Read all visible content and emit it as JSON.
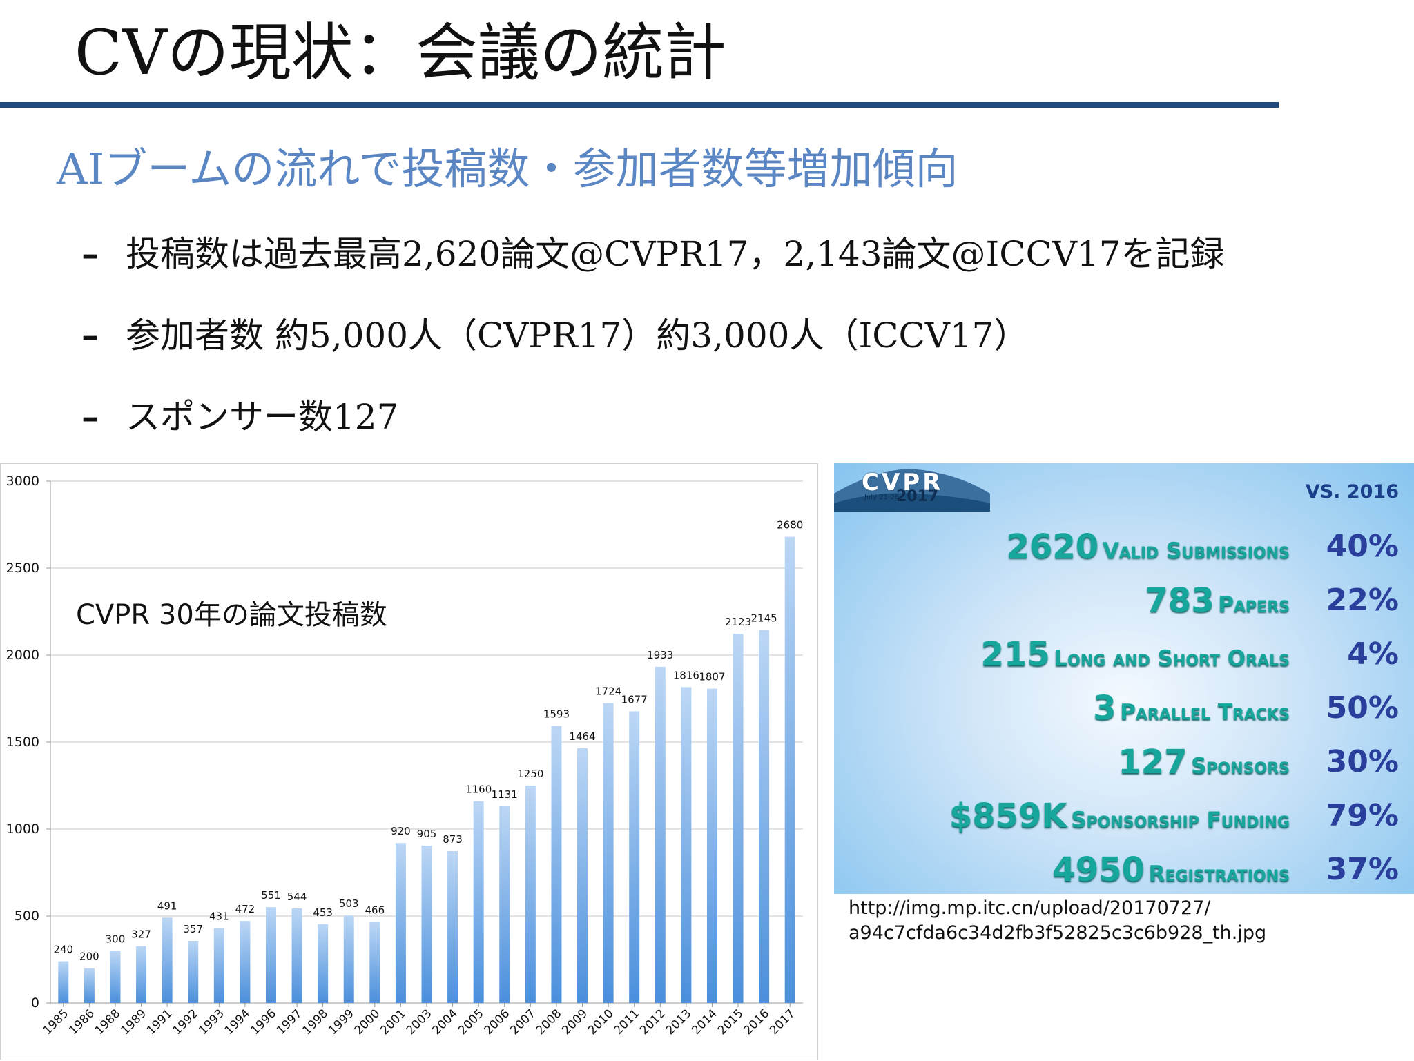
{
  "slide": {
    "title": "CVの現状：会議の統計",
    "subtitle": "AIブームの流れで投稿数・参加者数等増加傾向",
    "bullet_marker": "–",
    "bullets": [
      "投稿数は過去最高2,620論文@CVPR17，2,143論文@ICCV17を記録",
      "参加者数 約5,000人（CVPR17）約3,000人（ICCV17）",
      "スポンサー数127"
    ]
  },
  "chart_data": {
    "type": "bar",
    "title": "CVPR 30年の論文投稿数",
    "xlabel": "",
    "ylabel": "",
    "ylim": [
      0,
      3000
    ],
    "yticks": [
      0,
      500,
      1000,
      1500,
      2000,
      2500,
      3000
    ],
    "grid": true,
    "categories": [
      "1985",
      "1986",
      "1988",
      "1989",
      "1991",
      "1992",
      "1993",
      "1994",
      "1996",
      "1997",
      "1998",
      "1999",
      "2000",
      "2001",
      "2003",
      "2004",
      "2005",
      "2006",
      "2007",
      "2008",
      "2009",
      "2010",
      "2011",
      "2012",
      "2013",
      "2014",
      "2015",
      "2016",
      "2017"
    ],
    "values": [
      240,
      200,
      300,
      327,
      491,
      357,
      431,
      472,
      551,
      544,
      453,
      503,
      466,
      920,
      905,
      873,
      1160,
      1131,
      1250,
      1593,
      1464,
      1724,
      1677,
      1933,
      1816,
      1807,
      2123,
      2145,
      2680
    ],
    "bar_color": "#4a8fdc",
    "bar_color_light": "#bcd7f5"
  },
  "stats_panel": {
    "logo_text": "CVPR",
    "logo_year": "2017",
    "logo_dates": "July 21-26",
    "vs_header": "VS. 2016",
    "rows": [
      {
        "number": "2620",
        "label": "Valid Submissions",
        "percent": "40%"
      },
      {
        "number": "783",
        "label": "Papers",
        "percent": "22%"
      },
      {
        "number": "215",
        "label": "Long and Short Orals",
        "percent": "4%"
      },
      {
        "number": "3",
        "label": "Parallel Tracks",
        "percent": "50%"
      },
      {
        "number": "127",
        "label": "Sponsors",
        "percent": "30%"
      },
      {
        "number": "$859K",
        "label": "Sponsorship Funding",
        "percent": "79%"
      },
      {
        "number": "4950",
        "label": "Registrations",
        "percent": "37%"
      }
    ]
  },
  "source": {
    "line1": "http://img.mp.itc.cn/upload/20170727/",
    "line2": "a94c7cfda6c34d2fb3f52825c3c6b928_th.jpg"
  }
}
